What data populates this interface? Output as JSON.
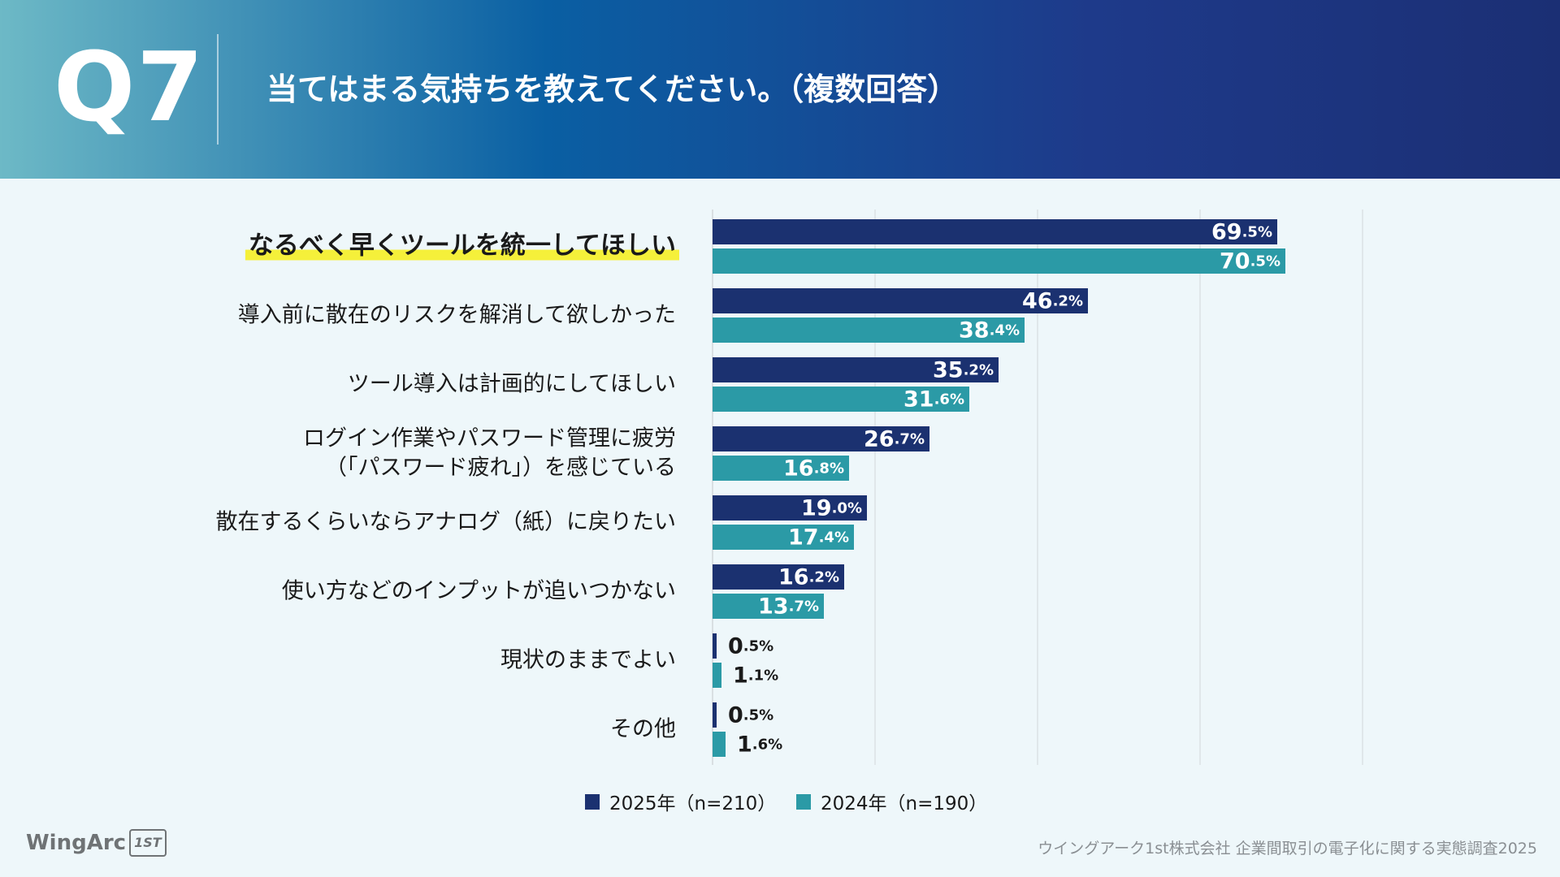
{
  "header": {
    "question_number": "Q7",
    "title": "当てはまる気持ちを教えてください。（複数回答）"
  },
  "colors": {
    "series_2025": "#1b3170",
    "series_2024": "#2b9aa6",
    "highlight": "#f5f03a",
    "gridline": "#d2d7da"
  },
  "chart_data": {
    "type": "bar",
    "orientation": "horizontal",
    "categories": [
      "なるべく早くツールを統一してほしい",
      "導入前に散在のリスクを解消して欲しかった",
      "ツール導入は計画的にしてほしい",
      "ログイン作業やパスワード管理に疲労\n（「パスワード疲れ」）を感じている",
      "散在するくらいならアナログ（紙）に戻りたい",
      "使い方などのインプットが追いつかない",
      "現状のままでよい",
      "その他"
    ],
    "highlighted_category": 0,
    "series": [
      {
        "name": "2025年（n=210）",
        "values": [
          69.5,
          46.2,
          35.2,
          26.7,
          19.0,
          16.2,
          0.5,
          0.5
        ]
      },
      {
        "name": "2024年（n=190）",
        "values": [
          70.5,
          38.4,
          31.6,
          16.8,
          17.4,
          13.7,
          1.1,
          1.6
        ]
      }
    ],
    "value_unit": "%",
    "xlim": [
      0,
      80
    ],
    "grid": true,
    "legend_position": "bottom-center"
  },
  "legend": {
    "items": [
      "2025年（n=210）",
      "2024年（n=190）"
    ]
  },
  "footer": {
    "logo_text": "WingArc",
    "logo_mark": "1ST",
    "source": "ウイングアーク1st株式会社 企業間取引の電子化に関する実態調査2025"
  }
}
